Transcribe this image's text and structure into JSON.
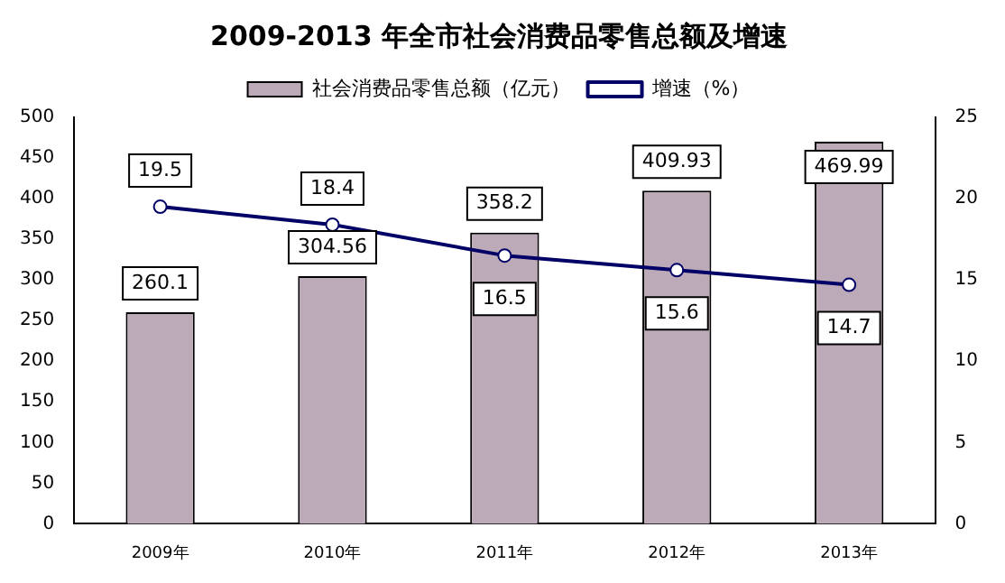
{
  "chart_data": {
    "type": "bar",
    "title": "2009-2013 年全市社会消费品零售总额及增速",
    "categories": [
      "2009年",
      "2010年",
      "2011年",
      "2012年",
      "2013年"
    ],
    "series": [
      {
        "name": "社会消费品零售总额（亿元）",
        "color": "#bdaab8",
        "values": [
          260.1,
          304.56,
          358.2,
          409.93,
          469.99
        ]
      },
      {
        "name": "增速（%）",
        "type": "line",
        "axis": "y2",
        "color": "#000066",
        "marker": "circle",
        "values": [
          19.5,
          18.4,
          16.5,
          15.6,
          14.7
        ]
      }
    ],
    "ylim": [
      0,
      500
    ],
    "yticks": [
      0,
      50,
      100,
      150,
      200,
      250,
      300,
      350,
      400,
      450,
      500
    ],
    "y2lim": [
      0,
      25
    ],
    "y2ticks": [
      0,
      5,
      10,
      15,
      20,
      25
    ],
    "data_labels": true,
    "legend": "top",
    "grid": false
  }
}
